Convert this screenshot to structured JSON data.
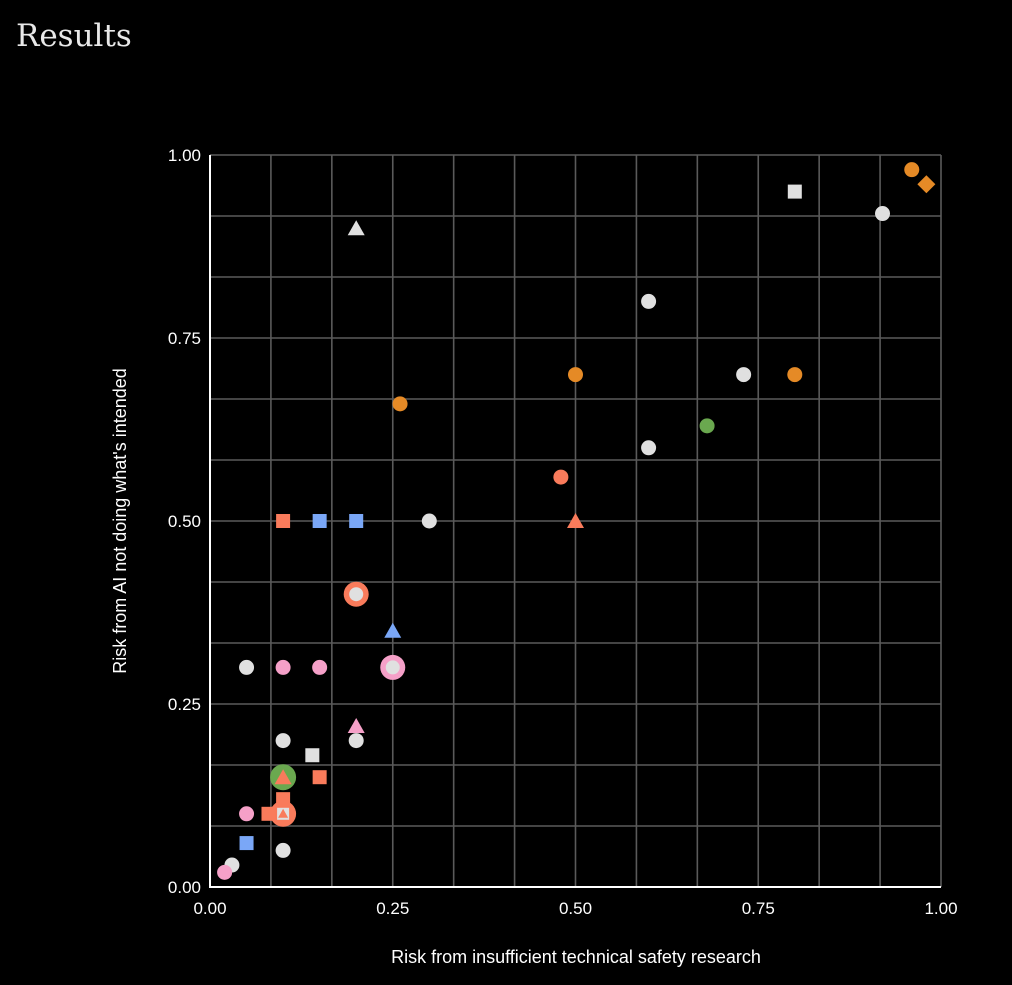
{
  "page": {
    "title": "Results"
  },
  "chart_data": {
    "type": "scatter",
    "title": "",
    "xlabel": "Risk from insufficient technical safety research",
    "ylabel": "Risk from AI not doing what's intended",
    "xlim": [
      0,
      1
    ],
    "ylim": [
      0,
      1
    ],
    "x_ticks": [
      "0.00",
      "0.25",
      "0.50",
      "0.75",
      "1.00"
    ],
    "y_ticks": [
      "0.00",
      "0.25",
      "0.50",
      "0.75",
      "1.00"
    ],
    "x_tick_values": [
      0,
      0.25,
      0.5,
      0.75,
      1
    ],
    "y_tick_values": [
      0,
      0.25,
      0.5,
      0.75,
      1
    ],
    "grid": true,
    "grid_divisions": 12,
    "legend": "none",
    "colors": {
      "grey": "#e0e0e0",
      "salmon": "#f97b5b",
      "blue": "#7aa7f7",
      "pink": "#f5a0c8",
      "orange": "#e58a26",
      "green": "#6aa84f",
      "grid": "#5a5a5a",
      "axis": "#ffffff",
      "background": "#000000"
    },
    "series": [
      {
        "name": "grey-circles",
        "color": "grey",
        "shape": "circle",
        "points": [
          [
            0.92,
            0.92
          ],
          [
            0.6,
            0.8
          ],
          [
            0.73,
            0.7
          ],
          [
            0.6,
            0.6
          ],
          [
            0.3,
            0.5
          ],
          [
            0.05,
            0.3
          ],
          [
            0.1,
            0.2
          ],
          [
            0.2,
            0.2
          ],
          [
            0.1,
            0.05
          ],
          [
            0.03,
            0.03
          ]
        ]
      },
      {
        "name": "grey-squares",
        "color": "grey",
        "shape": "square",
        "points": [
          [
            0.8,
            0.95
          ],
          [
            0.14,
            0.18
          ]
        ]
      },
      {
        "name": "grey-triangles",
        "color": "grey",
        "shape": "triangle",
        "points": [
          [
            0.2,
            0.9
          ]
        ]
      },
      {
        "name": "orange-circles",
        "color": "orange",
        "shape": "circle",
        "points": [
          [
            0.96,
            0.98
          ],
          [
            0.5,
            0.7
          ],
          [
            0.8,
            0.7
          ],
          [
            0.26,
            0.66
          ]
        ]
      },
      {
        "name": "orange-diamonds",
        "color": "orange",
        "shape": "diamond",
        "points": [
          [
            0.98,
            0.96
          ]
        ]
      },
      {
        "name": "green-circles",
        "color": "green",
        "shape": "circle",
        "points": [
          [
            0.68,
            0.63
          ]
        ]
      },
      {
        "name": "green-large-circles",
        "color": "green",
        "shape": "large-circle",
        "points": [
          [
            0.1,
            0.15
          ]
        ]
      },
      {
        "name": "salmon-circles",
        "color": "salmon",
        "shape": "circle",
        "points": [
          [
            0.48,
            0.56
          ]
        ]
      },
      {
        "name": "salmon-large-circles",
        "color": "salmon",
        "shape": "large-circle",
        "points": [
          [
            0.1,
            0.1
          ]
        ]
      },
      {
        "name": "salmon-rings",
        "color": "salmon",
        "shape": "ring",
        "points": [
          [
            0.2,
            0.4
          ]
        ]
      },
      {
        "name": "salmon-squares",
        "color": "salmon",
        "shape": "square",
        "points": [
          [
            0.1,
            0.5
          ],
          [
            0.15,
            0.15
          ],
          [
            0.08,
            0.1
          ],
          [
            0.1,
            0.12
          ]
        ]
      },
      {
        "name": "salmon-triangles",
        "color": "salmon",
        "shape": "triangle",
        "points": [
          [
            0.5,
            0.5
          ],
          [
            0.1,
            0.15
          ]
        ]
      },
      {
        "name": "grey-squares-small",
        "color": "grey",
        "shape": "small-square",
        "points": [
          [
            0.1,
            0.1
          ]
        ]
      },
      {
        "name": "salmon-triangles-small",
        "color": "salmon",
        "shape": "small-triangle",
        "points": [
          [
            0.1,
            0.1
          ]
        ]
      },
      {
        "name": "blue-squares",
        "color": "blue",
        "shape": "square",
        "points": [
          [
            0.15,
            0.5
          ],
          [
            0.2,
            0.5
          ],
          [
            0.05,
            0.06
          ]
        ]
      },
      {
        "name": "blue-triangles",
        "color": "blue",
        "shape": "triangle",
        "points": [
          [
            0.25,
            0.35
          ]
        ]
      },
      {
        "name": "pink-circles",
        "color": "pink",
        "shape": "circle",
        "points": [
          [
            0.1,
            0.3
          ],
          [
            0.15,
            0.3
          ],
          [
            0.05,
            0.1
          ],
          [
            0.02,
            0.02
          ]
        ]
      },
      {
        "name": "pink-rings",
        "color": "pink",
        "shape": "ring",
        "points": [
          [
            0.25,
            0.3
          ]
        ]
      },
      {
        "name": "pink-triangles",
        "color": "pink",
        "shape": "triangle",
        "points": [
          [
            0.2,
            0.22
          ]
        ]
      }
    ]
  }
}
